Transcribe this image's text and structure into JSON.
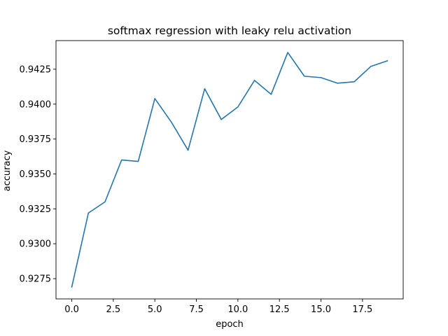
{
  "chart_data": {
    "type": "line",
    "title": "softmax regression with leaky relu activation",
    "xlabel": "epoch",
    "ylabel": "accuracy",
    "xlim": [
      -0.95,
      19.95
    ],
    "ylim": [
      0.92605,
      0.94455
    ],
    "xticks": [
      0.0,
      2.5,
      5.0,
      7.5,
      10.0,
      12.5,
      15.0,
      17.5
    ],
    "xtick_labels": [
      "0.0",
      "2.5",
      "5.0",
      "7.5",
      "10.0",
      "12.5",
      "15.0",
      "17.5"
    ],
    "yticks": [
      0.9275,
      0.93,
      0.9325,
      0.935,
      0.9375,
      0.94,
      0.9425
    ],
    "ytick_labels": [
      "0.9275",
      "0.9300",
      "0.9325",
      "0.9350",
      "0.9375",
      "0.9400",
      "0.9425"
    ],
    "grid": false,
    "series": [
      {
        "color": "#1f77b4",
        "x": [
          0,
          1,
          2,
          3,
          4,
          5,
          6,
          7,
          8,
          9,
          10,
          11,
          12,
          13,
          14,
          15,
          16,
          17,
          18,
          19
        ],
        "y": [
          0.9269,
          0.9322,
          0.933,
          0.936,
          0.9359,
          0.9404,
          0.9387,
          0.9367,
          0.9411,
          0.9389,
          0.9398,
          0.9417,
          0.9407,
          0.9437,
          0.942,
          0.9419,
          0.9415,
          0.9416,
          0.9427,
          0.9431
        ]
      }
    ]
  }
}
